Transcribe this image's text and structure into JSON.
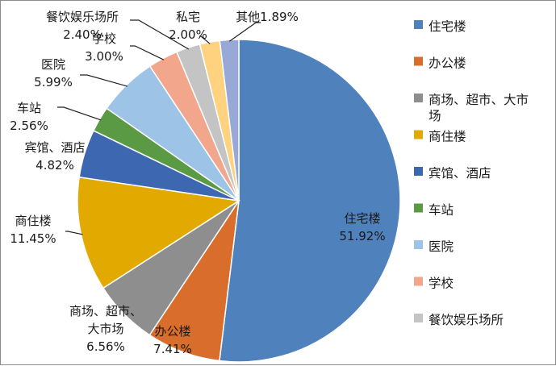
{
  "chart_data": {
    "type": "pie",
    "title": "",
    "slices": [
      {
        "name": "住宅楼",
        "value": 51.92,
        "label_lines": [
          "住宅楼",
          "51.92%"
        ],
        "color": "#4f81bd"
      },
      {
        "name": "办公楼",
        "value": 7.41,
        "label_lines": [
          "办公楼",
          "7.41%"
        ],
        "color": "#d86d2c"
      },
      {
        "name": "商场、超市、大市场",
        "value": 6.56,
        "label_lines": [
          "商场、超市、",
          "大市场",
          "6.56%"
        ],
        "color": "#8e8e8e"
      },
      {
        "name": "商住楼",
        "value": 11.45,
        "label_lines": [
          "商住楼",
          "11.45%"
        ],
        "color": "#e2aa00"
      },
      {
        "name": "宾馆、酒店",
        "value": 4.82,
        "label_lines": [
          "宾馆、酒店",
          "4.82%"
        ],
        "color": "#3d68b1"
      },
      {
        "name": "车站",
        "value": 2.56,
        "label_lines": [
          "车站",
          "2.56%"
        ],
        "color": "#5b9a44"
      },
      {
        "name": "医院",
        "value": 5.99,
        "label_lines": [
          "医院",
          "5.99%"
        ],
        "color": "#9dc3e6"
      },
      {
        "name": "学校",
        "value": 3.0,
        "label_lines": [
          "学校",
          "3.00%"
        ],
        "color": "#f2a68c"
      },
      {
        "name": "餐饮娱乐场所",
        "value": 2.4,
        "label_lines": [
          "餐饮娱乐场所",
          "2.40%"
        ],
        "color": "#c4c4c4"
      },
      {
        "name": "私宅",
        "value": 2.0,
        "label_lines": [
          "私宅",
          "2.00%"
        ],
        "color": "#ffd27f"
      },
      {
        "name": "其他",
        "value": 1.89,
        "label_lines": [
          "其他1.89%"
        ],
        "color": "#98a9d8"
      }
    ],
    "legend": {
      "position": "right",
      "items": [
        {
          "label_lines": [
            "住宅楼"
          ],
          "color": "#4f81bd"
        },
        {
          "label_lines": [
            "办公楼"
          ],
          "color": "#d86d2c"
        },
        {
          "label_lines": [
            "商场、超市、大市",
            "场"
          ],
          "color": "#8e8e8e"
        },
        {
          "label_lines": [
            "商住楼"
          ],
          "color": "#e2aa00"
        },
        {
          "label_lines": [
            "宾馆、酒店"
          ],
          "color": "#3d68b1"
        },
        {
          "label_lines": [
            "车站"
          ],
          "color": "#5b9a44"
        },
        {
          "label_lines": [
            "医院"
          ],
          "color": "#9dc3e6"
        },
        {
          "label_lines": [
            "学校"
          ],
          "color": "#f2a68c"
        },
        {
          "label_lines": [
            "餐饮娱乐场所"
          ],
          "color": "#c4c4c4"
        }
      ]
    }
  }
}
